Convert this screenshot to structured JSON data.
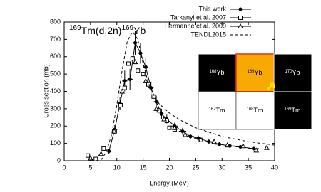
{
  "chart_data": {
    "type": "line",
    "title": {
      "mass_1": "169",
      "reaction": "Tm(d,2n)",
      "mass_2": "169",
      "element_2": "Yb"
    },
    "x_label": "Energy (MeV)",
    "y_label": "Cross section (mb)",
    "xlim": [
      0,
      40
    ],
    "xticks": [
      0,
      5,
      10,
      15,
      20,
      25,
      30,
      35,
      40
    ],
    "ylim": [
      0,
      800
    ],
    "yticks": [
      0,
      100,
      200,
      300,
      400,
      500,
      600,
      700,
      800
    ],
    "legend": "top-right",
    "series": [
      {
        "name": "This work",
        "color": "#000000",
        "marker": "circle",
        "line": "solid",
        "x": [
          8.5,
          9.6,
          10.6,
          11.5,
          12.5,
          13.5,
          14.5,
          15.5,
          16.5,
          17.5,
          18.5,
          19.5,
          21,
          22.5,
          24,
          25.5,
          27.5,
          29.5,
          31.5,
          33.5,
          36
        ],
        "values": [
          55,
          180,
          330,
          460,
          470,
          680,
          620,
          540,
          420,
          340,
          270,
          240,
          200,
          170,
          140,
          130,
          110,
          95,
          85,
          80,
          70
        ],
        "yerr": [
          15,
          25,
          35,
          60,
          60,
          70,
          60,
          55,
          40,
          35,
          30,
          25,
          20,
          20,
          15,
          15,
          15,
          12,
          10,
          10,
          10
        ],
        "xerr": [
          0.5,
          0.5,
          0.5,
          0.5,
          0.5,
          0.5,
          0.5,
          0.5,
          0.5,
          0.5,
          0.5,
          0.5,
          0.7,
          0.7,
          0.7,
          0.8,
          0.8,
          0.8,
          0.9,
          0.9,
          1
        ]
      },
      {
        "name": "Tarkanyi et al. 2007",
        "color": "#000000",
        "marker": "square",
        "line": "none",
        "x": [
          4.5,
          6,
          7.5,
          9.6,
          10.7,
          11.5,
          12.2,
          13,
          14,
          15,
          16,
          17,
          18,
          19.5,
          20,
          21
        ],
        "values": [
          30,
          10,
          70,
          170,
          320,
          420,
          560,
          590,
          520,
          500,
          440,
          370,
          290,
          230,
          190,
          180
        ]
      },
      {
        "name": "Hermanne et al. 2009",
        "color": "#000000",
        "marker": "triangle",
        "line": "none",
        "x": [
          5,
          7,
          9.5,
          11,
          13.5,
          15.5,
          17.5,
          19,
          21,
          23,
          26,
          28.5,
          31,
          34,
          36.5,
          38.5
        ],
        "values": [
          15,
          40,
          170,
          400,
          570,
          460,
          300,
          240,
          190,
          150,
          120,
          110,
          90,
          85,
          60,
          75
        ]
      },
      {
        "name": "TENDL2015",
        "color": "#000000",
        "marker": "none",
        "line": "dashed",
        "x": [
          6,
          7,
          8,
          9,
          10,
          11,
          12,
          13,
          14,
          15,
          16,
          17,
          18,
          20,
          22,
          25,
          30,
          35,
          40
        ],
        "values": [
          0,
          5,
          50,
          150,
          320,
          520,
          690,
          745,
          700,
          560,
          450,
          380,
          330,
          275,
          235,
          190,
          140,
          110,
          90
        ]
      }
    ]
  },
  "inset": {
    "cells": [
      {
        "mass": "168",
        "element": "Yb"
      },
      {
        "mass": "169",
        "element": "Yb"
      },
      {
        "mass": "170",
        "element": "Yb"
      },
      {
        "mass": "167",
        "element": "Tm"
      },
      {
        "mass": "168",
        "element": "Tm"
      },
      {
        "mass": "169",
        "element": "Tm"
      }
    ]
  }
}
